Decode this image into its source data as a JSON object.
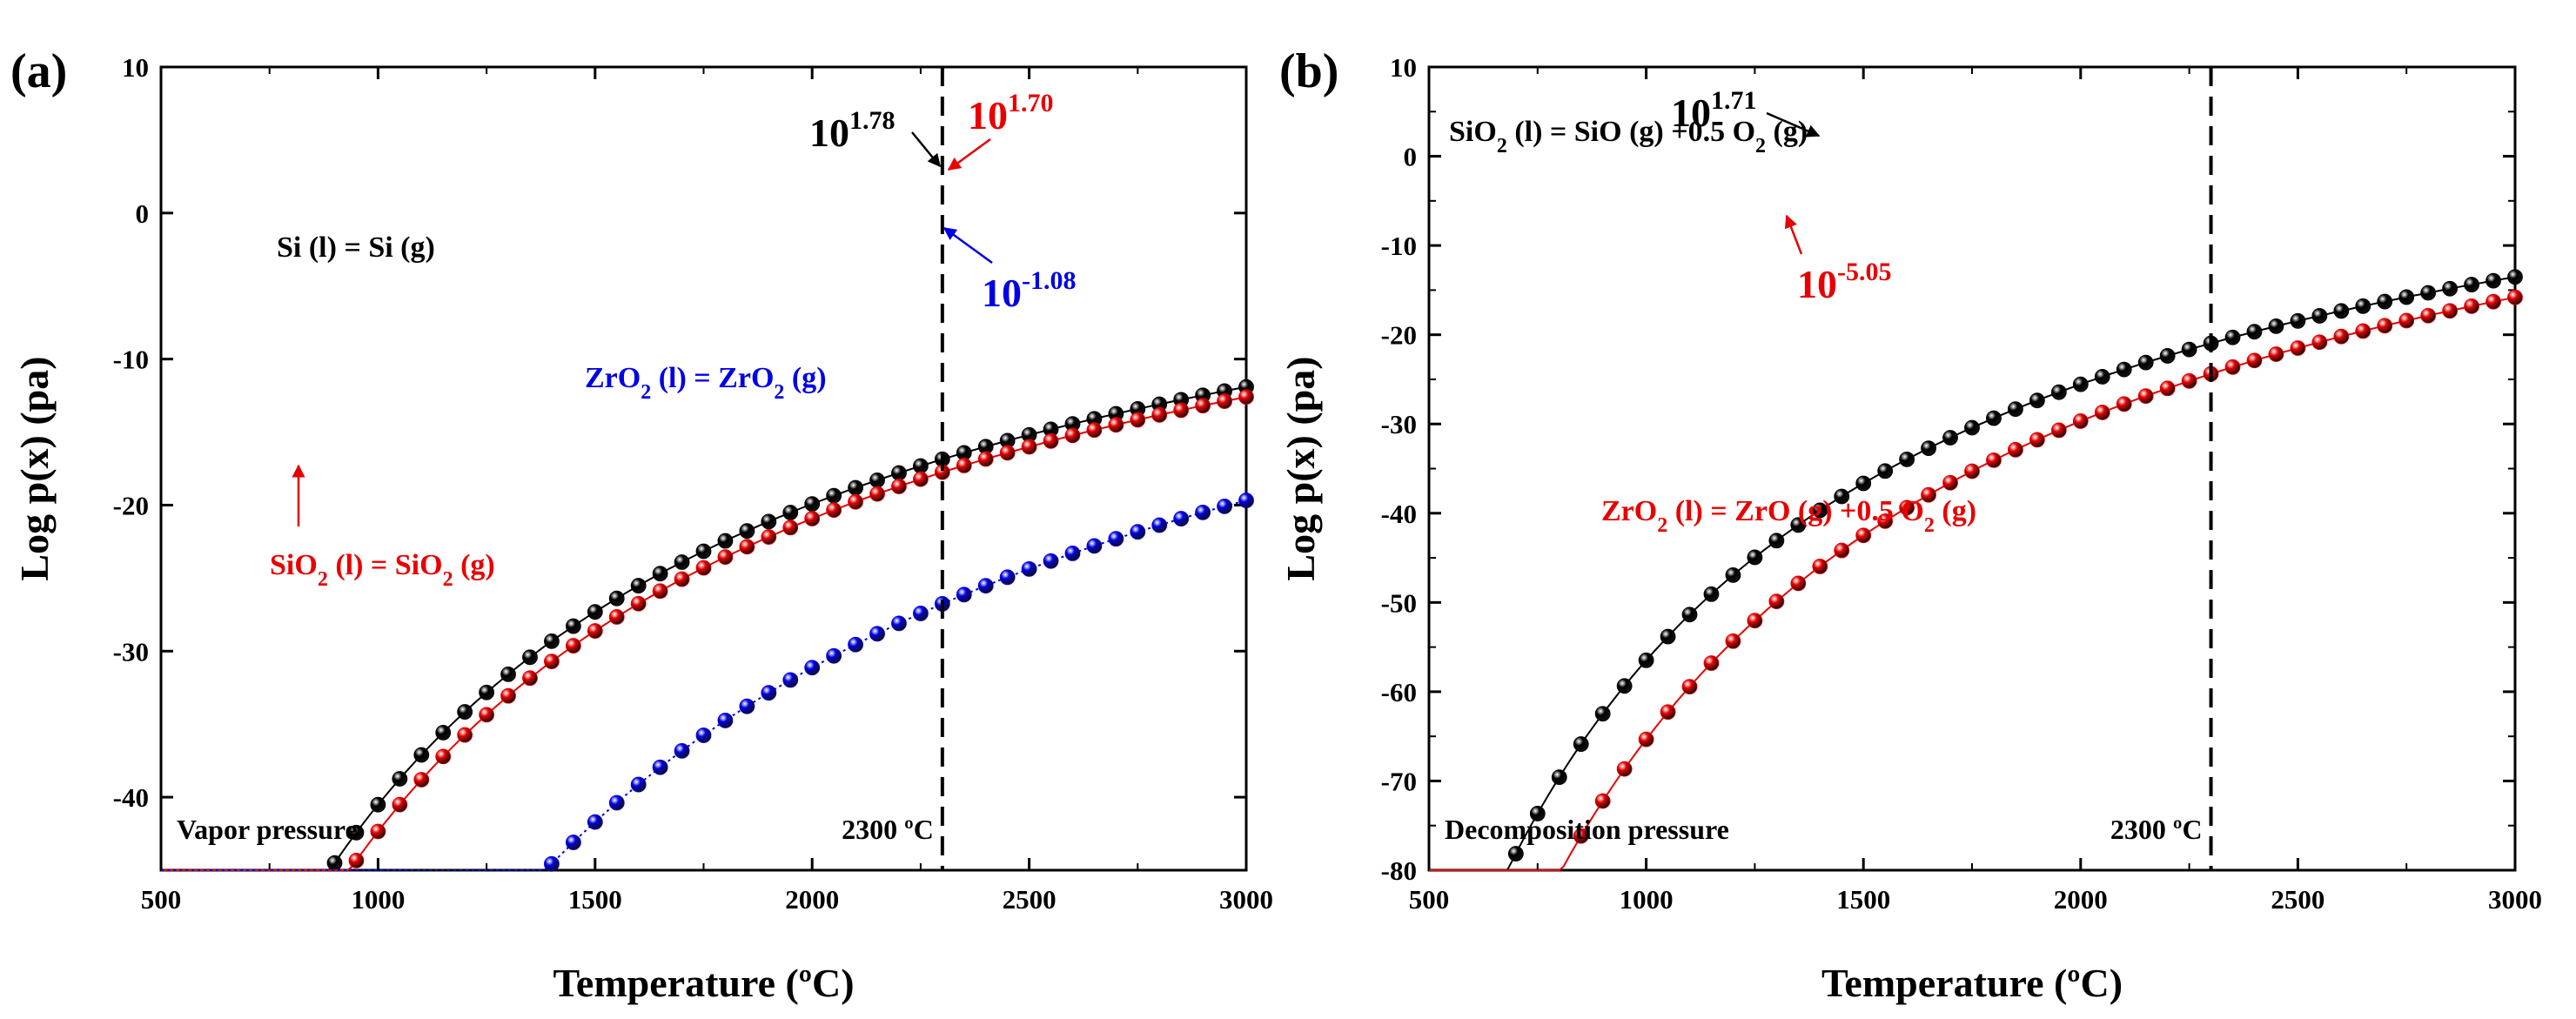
{
  "colors": {
    "black": "#000000",
    "red": "#e80000",
    "blue": "#0000e6",
    "axis": "#000000"
  },
  "chart_data": [
    {
      "type": "scatter",
      "panel_label": "(a)",
      "title": "",
      "xlabel": "Temperature (ºC)",
      "ylabel": "Log p(x) (pa)",
      "xlim": [
        500,
        3000
      ],
      "ylim": [
        -45,
        10
      ],
      "x_ticks": [
        500,
        1000,
        1500,
        2000,
        2500,
        3000
      ],
      "x_tick_labels": [
        "500",
        "1000",
        "1500",
        "2000",
        "2500",
        "3000"
      ],
      "y_ticks": [
        10,
        0,
        -10,
        -20,
        -30,
        -40
      ],
      "y_tick_labels": [
        "10",
        "0",
        "-10",
        "-20",
        "-30",
        "-40"
      ],
      "corner_label": "Vapor pressure",
      "vline": {
        "x": 2300,
        "label": "2300 ºC",
        "style": "dashed"
      },
      "series": [
        {
          "name": "Si (l) = Si (g)",
          "color": "#000000",
          "fit": {
            "A": 6.3,
            "B": 59600
          },
          "x_start": 500,
          "x_step": 50
        },
        {
          "name": "SiO2 (l) = SiO2 (g)",
          "color": "#e80000",
          "fit": {
            "A": 6.35,
            "B": 62000
          },
          "x_start": 500,
          "x_step": 50
        },
        {
          "name": "ZrO2 (l) = ZrO2 (g)",
          "color": "#0000e6",
          "fit": {
            "A": 6.35,
            "B": 85200
          },
          "x_start": 500,
          "x_step": 50
        }
      ],
      "annotations": [
        {
          "base": "10",
          "exp": "1.78",
          "x": 2300,
          "y": 1.78,
          "color": "#000000"
        },
        {
          "base": "10",
          "exp": "1.70",
          "x": 2300,
          "y": 1.7,
          "color": "#e80000"
        },
        {
          "base": "10",
          "exp": "-1.08",
          "x": 2300,
          "y": -1.08,
          "color": "#0000e6"
        }
      ],
      "series_labels": [
        {
          "parts": [
            {
              "t": "Si (l) = Si (g)"
            }
          ],
          "color": "#000000"
        },
        {
          "parts": [
            {
              "t": "SiO"
            },
            {
              "t": "2",
              "sub": true
            },
            {
              "t": " (l) = SiO"
            },
            {
              "t": "2",
              "sub": true
            },
            {
              "t": " (g)"
            }
          ],
          "color": "#e80000"
        },
        {
          "parts": [
            {
              "t": "ZrO"
            },
            {
              "t": "2",
              "sub": true
            },
            {
              "t": " (l) = ZrO"
            },
            {
              "t": "2",
              "sub": true
            },
            {
              "t": " (g)"
            }
          ],
          "color": "#0000e6"
        }
      ]
    },
    {
      "type": "scatter",
      "panel_label": "(b)",
      "title": "",
      "xlabel": "Temperature (ºC)",
      "ylabel": "Log p(x) (pa)",
      "xlim": [
        500,
        3000
      ],
      "ylim": [
        -80,
        10
      ],
      "x_ticks": [
        500,
        1000,
        1500,
        2000,
        2500,
        3000
      ],
      "x_tick_labels": [
        "500",
        "1000",
        "1500",
        "2000",
        "2500",
        "3000"
      ],
      "y_ticks": [
        10,
        0,
        -10,
        -20,
        -30,
        -40,
        -50,
        -60,
        -70,
        -80
      ],
      "y_tick_labels": [
        "10",
        "0",
        "-10",
        "-20",
        "-30",
        "-40",
        "-50",
        "-60",
        "-70",
        "-80"
      ],
      "corner_label": "Decomposition pressure",
      "vline": {
        "x": 2300,
        "label": "2300 ºC",
        "style": "dashed"
      },
      "series": [
        {
          "name": "SiO2 (l) = SiO (g) +0.5 O2 (g)",
          "color": "#000000",
          "fit": {
            "A": 13.82,
            "B": 89500
          },
          "x_start": 500,
          "x_step": 50
        },
        {
          "name": "ZrO2 (l) = ZrO (g) +0.5 O2 (g)",
          "color": "#e80000",
          "fit": {
            "A": 15.72,
            "B": 103200
          },
          "x_start": 500,
          "x_step": 50
        }
      ],
      "annotations": [
        {
          "base": "10",
          "exp": "1.71",
          "x": 2300,
          "y": 1.71,
          "color": "#000000"
        },
        {
          "base": "10",
          "exp": "-5.05",
          "x": 2300,
          "y": -5.05,
          "color": "#e80000"
        }
      ],
      "series_labels": [
        {
          "parts": [
            {
              "t": "SiO"
            },
            {
              "t": "2",
              "sub": true
            },
            {
              "t": " (l) = SiO (g) +0.5 O"
            },
            {
              "t": "2",
              "sub": true
            },
            {
              "t": " (g)"
            }
          ],
          "color": "#000000"
        },
        {
          "parts": [
            {
              "t": "ZrO"
            },
            {
              "t": "2",
              "sub": true
            },
            {
              "t": " (l) = ZrO (g) +0.5 O"
            },
            {
              "t": "2",
              "sub": true
            },
            {
              "t": " (g)"
            }
          ],
          "color": "#e80000"
        }
      ]
    }
  ]
}
